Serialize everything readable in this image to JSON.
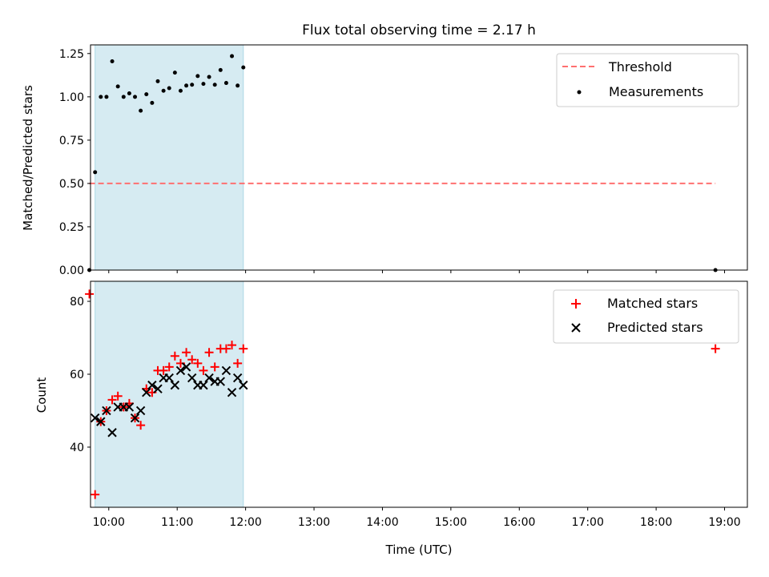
{
  "title": "Flux total observing time = 2.17 h",
  "colors": {
    "shade": "#add8e6",
    "threshold": "#ff7070",
    "measurement": "#000000",
    "matched": "#ff0000",
    "predicted": "#000000"
  },
  "chart_data": [
    {
      "type": "scatter",
      "ylabel": "Matched/Predicted stars",
      "ylim": [
        0,
        1.3
      ],
      "yticks": [
        0.0,
        0.25,
        0.5,
        0.75,
        1.0,
        1.25
      ],
      "ytick_labels": [
        "0.00",
        "0.25",
        "0.50",
        "0.75",
        "1.00",
        "1.25"
      ],
      "xlim": [
        "09:44",
        "19:20"
      ],
      "shaded_span": [
        "09:48",
        "11:58"
      ],
      "legend": {
        "position": "upper right",
        "entries": [
          "Threshold",
          "Measurements"
        ]
      },
      "threshold": {
        "name": "Threshold",
        "value": 0.5,
        "x_range": [
          "09:43",
          "18:52"
        ],
        "style": "dashed"
      },
      "series": [
        {
          "name": "Measurements",
          "marker": "dot",
          "x": [
            "09:43",
            "09:48",
            "09:53",
            "09:58",
            "10:03",
            "10:08",
            "10:13",
            "10:18",
            "10:23",
            "10:28",
            "10:33",
            "10:38",
            "10:43",
            "10:48",
            "10:53",
            "10:58",
            "11:03",
            "11:08",
            "11:13",
            "11:18",
            "11:23",
            "11:28",
            "11:33",
            "11:38",
            "11:43",
            "11:48",
            "11:53",
            "11:58",
            "18:52"
          ],
          "y": [
            0.0,
            0.565,
            1.0,
            1.0,
            1.205,
            1.06,
            1.0,
            1.02,
            1.0,
            0.92,
            1.015,
            0.965,
            1.09,
            1.035,
            1.05,
            1.14,
            1.035,
            1.065,
            1.07,
            1.12,
            1.075,
            1.115,
            1.07,
            1.155,
            1.08,
            1.235,
            1.065,
            1.17,
            0.0
          ]
        }
      ]
    },
    {
      "type": "scatter",
      "xlabel": "Time (UTC)",
      "ylabel": "Count",
      "ylim": [
        23.5,
        85.5
      ],
      "yticks": [
        40,
        60,
        80
      ],
      "ytick_labels": [
        "40",
        "60",
        "80"
      ],
      "xlim": [
        "09:44",
        "19:20"
      ],
      "xtick_labels": [
        "10:00",
        "11:00",
        "12:00",
        "13:00",
        "14:00",
        "15:00",
        "16:00",
        "17:00",
        "18:00",
        "19:00"
      ],
      "shaded_span": [
        "09:48",
        "11:58"
      ],
      "legend": {
        "position": "upper right",
        "entries": [
          "Matched stars",
          "Predicted stars"
        ]
      },
      "series": [
        {
          "name": "Matched stars",
          "marker": "plus",
          "x": [
            "09:43",
            "09:48",
            "09:53",
            "09:58",
            "10:03",
            "10:08",
            "10:13",
            "10:18",
            "10:23",
            "10:28",
            "10:33",
            "10:38",
            "10:43",
            "10:48",
            "10:53",
            "10:58",
            "11:03",
            "11:08",
            "11:13",
            "11:18",
            "11:23",
            "11:28",
            "11:33",
            "11:38",
            "11:43",
            "11:48",
            "11:53",
            "11:58",
            "18:52"
          ],
          "y": [
            82,
            27,
            47,
            50,
            53,
            54,
            51,
            52,
            48,
            46,
            56,
            55,
            61,
            61,
            62,
            65,
            63,
            66,
            64,
            63,
            61,
            66,
            62,
            67,
            67,
            68,
            63,
            67,
            67
          ]
        },
        {
          "name": "Predicted stars",
          "marker": "x",
          "x": [
            "09:48",
            "09:53",
            "09:58",
            "10:03",
            "10:08",
            "10:13",
            "10:18",
            "10:23",
            "10:28",
            "10:33",
            "10:38",
            "10:43",
            "10:48",
            "10:53",
            "10:58",
            "11:03",
            "11:08",
            "11:13",
            "11:18",
            "11:23",
            "11:28",
            "11:33",
            "11:38",
            "11:43",
            "11:48",
            "11:53",
            "11:58"
          ],
          "y": [
            48,
            47,
            50,
            44,
            51,
            51,
            51,
            48,
            50,
            55,
            57,
            56,
            59,
            59,
            57,
            61,
            62,
            59,
            57,
            57,
            59,
            58,
            58,
            61,
            55,
            59,
            57
          ]
        }
      ]
    }
  ]
}
